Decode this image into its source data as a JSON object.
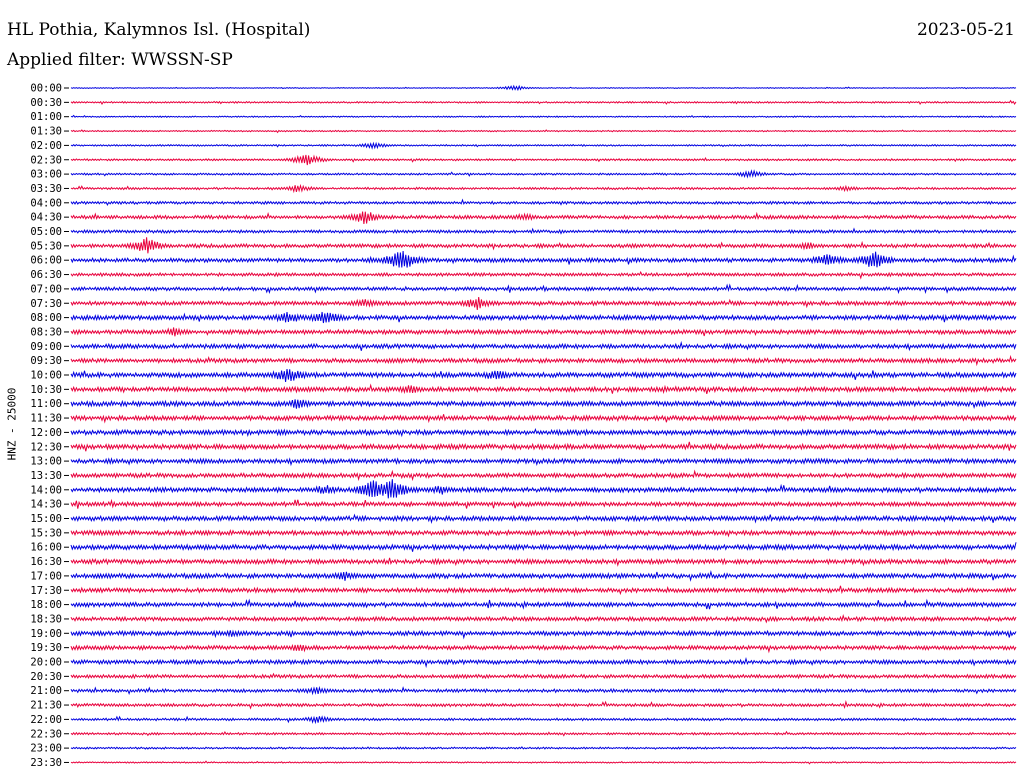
{
  "header": {
    "station": "HL Pothia, Kalymnos Isl. (Hospital)",
    "date": "2023-05-21",
    "filter_text": "Applied filter: WWSSN-SP"
  },
  "chart_data": {
    "type": "line",
    "ylabel": "HNZ - 25000",
    "rows": [
      "00:00",
      "00:30",
      "01:00",
      "01:30",
      "02:00",
      "02:30",
      "03:00",
      "03:30",
      "04:00",
      "04:30",
      "05:00",
      "05:30",
      "06:00",
      "06:30",
      "07:00",
      "07:30",
      "08:00",
      "08:30",
      "09:00",
      "09:30",
      "10:00",
      "10:30",
      "11:00",
      "11:30",
      "12:00",
      "12:30",
      "13:00",
      "13:30",
      "14:00",
      "14:30",
      "15:00",
      "15:30",
      "16:00",
      "16:30",
      "17:00",
      "17:30",
      "18:00",
      "18:30",
      "19:00",
      "19:30",
      "20:00",
      "20:30",
      "21:00",
      "21:30",
      "22:00",
      "22:30",
      "23:00",
      "23:30"
    ],
    "row_colors": [
      "#0000e0",
      "#e8003c"
    ],
    "noise_level": [
      0.3,
      0.6,
      0.5,
      0.5,
      0.6,
      0.7,
      0.7,
      0.8,
      1.0,
      1.3,
      1.1,
      1.4,
      1.5,
      1.2,
      1.3,
      1.5,
      1.7,
      1.6,
      1.6,
      1.6,
      1.8,
      1.7,
      1.8,
      1.7,
      1.8,
      1.8,
      1.7,
      1.6,
      1.7,
      1.6,
      1.7,
      1.7,
      1.8,
      1.7,
      1.7,
      1.6,
      1.6,
      1.5,
      1.6,
      1.5,
      1.5,
      1.3,
      1.2,
      1.1,
      0.9,
      0.8,
      0.7,
      0.5
    ],
    "events": [
      {
        "row": 0,
        "x": 0.47,
        "amp": 2.5
      },
      {
        "row": 4,
        "x": 0.32,
        "amp": 3
      },
      {
        "row": 5,
        "x": 0.25,
        "amp": 6
      },
      {
        "row": 6,
        "x": 0.72,
        "amp": 4
      },
      {
        "row": 7,
        "x": 0.24,
        "amp": 4
      },
      {
        "row": 7,
        "x": 0.82,
        "amp": 3
      },
      {
        "row": 9,
        "x": 0.31,
        "amp": 8
      },
      {
        "row": 9,
        "x": 0.48,
        "amp": 4
      },
      {
        "row": 11,
        "x": 0.08,
        "amp": 9
      },
      {
        "row": 11,
        "x": 0.78,
        "amp": 4
      },
      {
        "row": 12,
        "x": 0.35,
        "amp": 12
      },
      {
        "row": 12,
        "x": 0.8,
        "amp": 8
      },
      {
        "row": 12,
        "x": 0.85,
        "amp": 10
      },
      {
        "row": 15,
        "x": 0.31,
        "amp": 5
      },
      {
        "row": 15,
        "x": 0.43,
        "amp": 7
      },
      {
        "row": 16,
        "x": 0.23,
        "amp": 7
      },
      {
        "row": 16,
        "x": 0.27,
        "amp": 8
      },
      {
        "row": 17,
        "x": 0.11,
        "amp": 5
      },
      {
        "row": 20,
        "x": 0.23,
        "amp": 9
      },
      {
        "row": 20,
        "x": 0.45,
        "amp": 6
      },
      {
        "row": 21,
        "x": 0.36,
        "amp": 5
      },
      {
        "row": 22,
        "x": 0.24,
        "amp": 6
      },
      {
        "row": 28,
        "x": 0.27,
        "amp": 6
      },
      {
        "row": 28,
        "x": 0.32,
        "amp": 11
      },
      {
        "row": 28,
        "x": 0.34,
        "amp": 12
      },
      {
        "row": 28,
        "x": 0.39,
        "amp": 5
      },
      {
        "row": 34,
        "x": 0.29,
        "amp": 5
      },
      {
        "row": 38,
        "x": 0.17,
        "amp": 4
      },
      {
        "row": 39,
        "x": 0.24,
        "amp": 5
      },
      {
        "row": 42,
        "x": 0.26,
        "amp": 4
      },
      {
        "row": 44,
        "x": 0.26,
        "amp": 4
      }
    ]
  }
}
